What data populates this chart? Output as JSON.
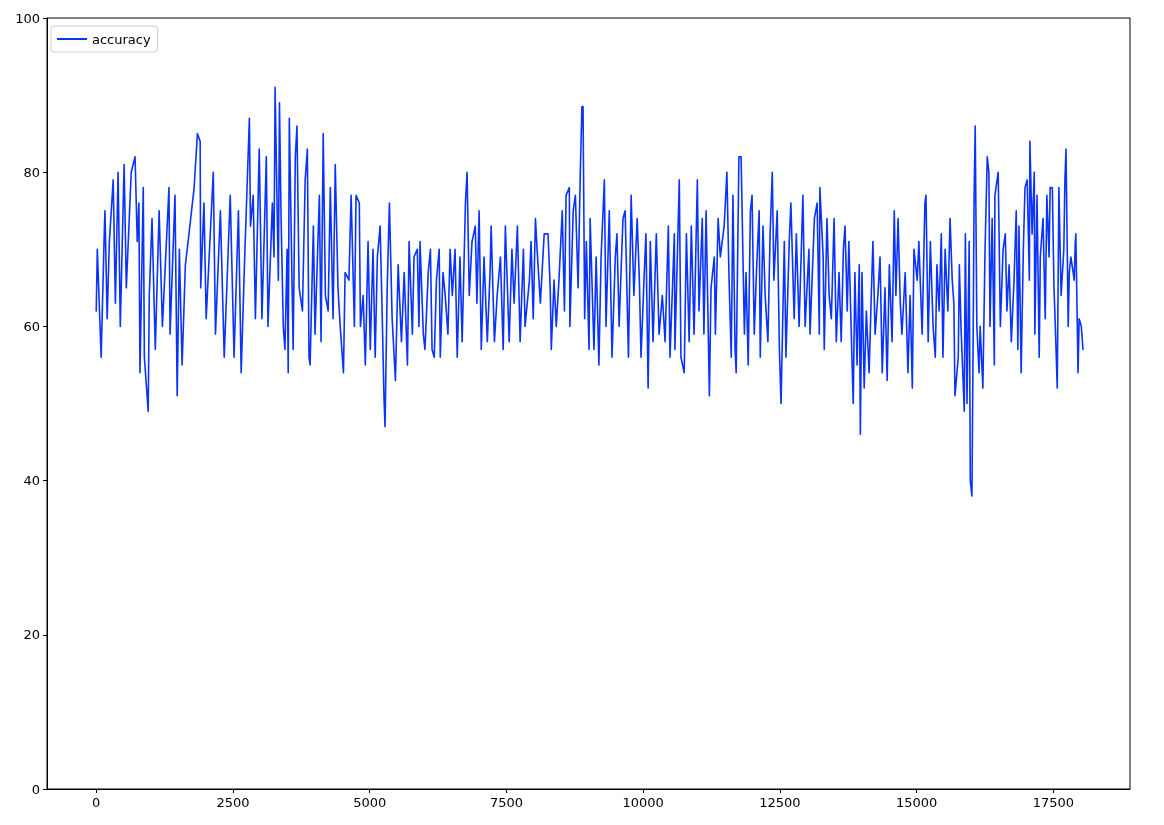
{
  "chart_data": {
    "type": "line",
    "x": [
      0,
      20,
      90,
      150,
      160,
      200,
      240,
      310,
      350,
      400,
      440,
      510,
      550,
      640,
      710,
      750,
      780,
      800,
      860,
      880,
      950,
      970,
      1020,
      1080,
      1150,
      1210,
      1330,
      1350,
      1440,
      1480,
      1520,
      1570,
      1630,
      1680,
      1790,
      1850,
      1900,
      1910,
      1970,
      2010,
      2140,
      2180,
      2270,
      2340,
      2450,
      2520,
      2600,
      2650,
      2710,
      2800,
      2820,
      2870,
      2910,
      2980,
      3030,
      3110,
      3140,
      3220,
      3250,
      3270,
      3330,
      3350,
      3380,
      3420,
      3450,
      3490,
      3510,
      3530,
      3600,
      3640,
      3670,
      3710,
      3770,
      3820,
      3860,
      3890,
      3910,
      3970,
      4000,
      4080,
      4110,
      4150,
      4190,
      4240,
      4280,
      4330,
      4370,
      4420,
      4460,
      4520,
      4550,
      4620,
      4660,
      4720,
      4750,
      4810,
      4830,
      4880,
      4920,
      4970,
      5010,
      5060,
      5100,
      5140,
      5190,
      5230,
      5260,
      5280,
      5320,
      5360,
      5410,
      5470,
      5520,
      5580,
      5630,
      5690,
      5720,
      5780,
      5810,
      5870,
      5900,
      5920,
      5980,
      6010,
      6070,
      6110,
      6140,
      6180,
      6220,
      6270,
      6290,
      6340,
      6380,
      6430,
      6470,
      6510,
      6560,
      6600,
      6650,
      6690,
      6750,
      6780,
      6820,
      6870,
      6930,
      6960,
      7000,
      7040,
      7090,
      7150,
      7200,
      7220,
      7280,
      7330,
      7390,
      7440,
      7480,
      7550,
      7600,
      7640,
      7700,
      7750,
      7810,
      7840,
      7920,
      7950,
      7990,
      8030,
      8060,
      8120,
      8190,
      8260,
      8300,
      8320,
      8370,
      8410,
      8460,
      8520,
      8560,
      8590,
      8650,
      8660,
      8720,
      8760,
      8810,
      8850,
      8880,
      8900,
      8930,
      8960,
      9010,
      9030,
      9100,
      9140,
      9190,
      9230,
      9290,
      9320,
      9380,
      9430,
      9490,
      9520,
      9560,
      9630,
      9670,
      9730,
      9780,
      9830,
      9890,
      9930,
      9960,
      10020,
      10050,
      10090,
      10130,
      10180,
      10240,
      10290,
      10350,
      10400,
      10460,
      10490,
      10570,
      10580,
      10660,
      10690,
      10750,
      10790,
      10840,
      10880,
      10930,
      10990,
      11020,
      11080,
      11110,
      11150,
      11210,
      11240,
      11300,
      11320,
      11370,
      11410,
      11480,
      11530,
      11570,
      11610,
      11640,
      11680,
      11700,
      11750,
      11790,
      11850,
      11880,
      11920,
      11960,
      11990,
      12030,
      12070,
      12120,
      12140,
      12190,
      12230,
      12280,
      12320,
      12360,
      12390,
      12450,
      12490,
      12520,
      12580,
      12610,
      12670,
      12700,
      12760,
      12800,
      12850,
      12920,
      12960,
      13030,
      13050,
      13130,
      13180,
      13220,
      13230,
      13290,
      13310,
      13360,
      13400,
      13440,
      13490,
      13530,
      13580,
      13620,
      13660,
      13690,
      13730,
      13760,
      13820,
      13840,
      13870,
      13910,
      13950,
      13970,
      14000,
      14040,
      14080,
      14130,
      14170,
      14200,
      14240,
      14290,
      14330,
      14370,
      14420,
      14460,
      14500,
      14550,
      14590,
      14620,
      14660,
      14700,
      14730,
      14790,
      14840,
      14880,
      14920,
      14950,
      15010,
      15040,
      15100,
      15150,
      15170,
      15210,
      15250,
      15300,
      15340,
      15370,
      15410,
      15450,
      15480,
      15520,
      15570,
      15610,
      15650,
      15680,
      15700,
      15760,
      15780,
      15810,
      15870,
      15890,
      15920,
      15960,
      15980,
      16010,
      16030,
      16050,
      16070,
      16100,
      16140,
      16160,
      16210,
      16250,
      16290,
      16320,
      16340,
      16380,
      16420,
      16430,
      16490,
      16530,
      16580,
      16620,
      16650,
      16690,
      16730,
      16780,
      16820,
      16850,
      16870,
      16910,
      16950,
      16980,
      17020,
      17060,
      17070,
      17110,
      17150,
      17160,
      17200,
      17240,
      17260,
      17310,
      17350,
      17380,
      17420,
      17440,
      17480,
      17510,
      17530,
      17570,
      17600,
      17640,
      17690,
      17710,
      17730,
      17770,
      17790,
      17820,
      17880,
      17900,
      17910,
      17950,
      17970,
      18010,
      18040
    ],
    "series": [
      {
        "name": "accuracy",
        "color": "#0a33ff",
        "values": [
          62,
          70,
          56,
          73,
          75,
          61,
          71,
          79,
          63,
          80,
          60,
          81,
          65,
          80,
          82,
          71,
          76,
          54,
          78,
          56,
          49,
          64,
          74,
          57,
          75,
          60,
          78,
          59,
          77,
          51,
          70,
          55,
          68,
          71,
          78,
          85,
          84,
          65,
          76,
          61,
          80,
          59,
          75,
          56,
          77,
          56,
          75,
          54,
          68,
          87,
          73,
          77,
          61,
          83,
          61,
          82,
          60,
          76,
          69,
          91,
          66,
          89,
          74,
          60,
          57,
          70,
          54,
          87,
          57,
          82,
          86,
          65,
          62,
          79,
          83,
          56,
          55,
          73,
          59,
          77,
          58,
          85,
          64,
          62,
          78,
          61,
          81,
          65,
          60,
          54,
          67,
          66,
          77,
          60,
          77,
          76,
          60,
          64,
          55,
          71,
          57,
          70,
          56,
          69,
          73,
          61,
          51,
          47,
          65,
          76,
          61,
          53,
          68,
          58,
          67,
          55,
          71,
          59,
          69,
          70,
          60,
          71,
          59,
          57,
          67,
          70,
          57,
          56,
          66,
          70,
          56,
          67,
          64,
          59,
          70,
          64,
          70,
          56,
          69,
          58,
          76,
          80,
          64,
          71,
          73,
          63,
          75,
          57,
          69,
          58,
          67,
          73,
          58,
          64,
          69,
          57,
          73,
          58,
          70,
          63,
          73,
          58,
          70,
          60,
          66,
          71,
          61,
          74,
          70,
          63,
          72,
          72,
          65,
          57,
          66,
          60,
          66,
          75,
          62,
          77,
          78,
          60,
          75,
          77,
          65,
          80,
          88.5,
          88.5,
          61,
          71,
          57,
          74,
          57,
          69,
          55,
          69,
          79,
          60,
          75,
          56,
          69,
          72,
          60,
          74,
          75,
          56,
          77,
          64,
          74,
          66,
          56,
          67,
          72,
          52,
          71,
          58,
          72,
          59,
          64,
          58,
          73,
          56,
          72,
          57,
          79,
          56,
          54,
          72,
          58,
          73,
          59,
          79,
          62,
          74,
          59,
          75,
          51,
          65,
          69,
          59,
          74,
          69,
          73,
          80,
          66,
          56,
          77,
          57,
          54,
          82,
          82,
          59,
          67,
          55,
          75,
          77,
          59,
          67,
          75,
          56,
          73,
          64,
          58,
          72,
          80,
          66,
          75,
          57,
          50,
          71,
          56,
          71,
          76,
          61,
          72,
          60,
          77,
          60,
          70,
          59,
          74,
          76,
          59,
          78,
          69,
          57,
          74,
          64,
          61,
          74,
          58,
          67,
          58,
          70,
          73,
          62,
          71,
          55,
          50,
          67,
          55,
          68,
          46,
          67,
          52,
          62,
          54,
          64,
          71,
          59,
          64,
          69,
          54,
          65,
          53,
          68,
          58,
          75,
          64,
          74,
          63,
          59,
          67,
          54,
          64,
          52,
          70,
          66,
          71,
          59,
          76,
          77,
          58,
          71,
          60,
          56,
          68,
          62,
          72,
          56,
          70,
          62,
          74,
          66,
          63,
          51,
          56,
          68,
          60,
          49,
          72,
          50,
          71,
          40,
          38,
          56,
          77,
          86,
          60,
          54,
          60,
          52,
          70,
          82,
          80,
          60,
          74,
          55,
          77,
          80,
          60,
          70,
          72,
          62,
          68,
          58,
          66,
          75,
          57,
          73,
          54,
          70,
          78,
          79,
          66,
          84,
          72,
          80,
          59,
          77,
          56,
          69,
          74,
          61,
          77,
          69,
          78,
          78,
          65,
          61,
          52,
          78,
          64,
          70,
          79,
          83,
          60,
          67,
          69,
          66,
          71,
          72,
          54,
          61,
          60,
          57
        ]
      }
    ],
    "xlim": [
      -900,
      18900
    ],
    "xticks": [
      0,
      2500,
      5000,
      7500,
      10000,
      12500,
      15000,
      17500
    ],
    "ylim": [
      0,
      100
    ],
    "yticks": [
      0,
      20,
      40,
      60,
      80,
      100
    ],
    "legend": "top left"
  }
}
